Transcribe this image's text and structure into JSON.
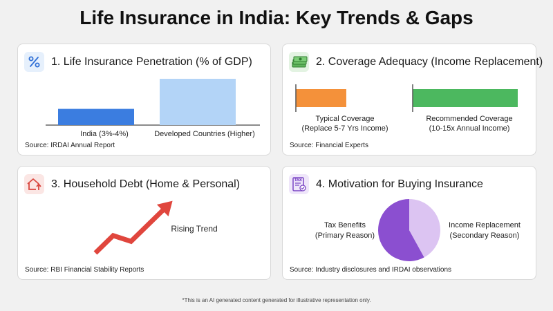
{
  "title": "Life Insurance in India: Key Trends & Gaps",
  "footer": "*This is an AI generated content generated for illustrative representation only.",
  "icons": {
    "card1": "percent-icon",
    "card2": "money-stack-icon",
    "card3": "house-up-arrow-icon",
    "card4": "tax-document-icon"
  },
  "colors": {
    "india_bar": "#3b7de0",
    "developed_bar": "#b3d4f7",
    "typical_bar": "#f4913a",
    "recommended_bar": "#4cb85f",
    "trend_arrow": "#e0463d",
    "pie_primary": "#8b4fd0",
    "pie_secondary": "#dcc4f2"
  },
  "card1": {
    "title": "1. Life Insurance Penetration (% of GDP)",
    "source": "Source: IRDAI Annual Report"
  },
  "card2": {
    "title": "2. Coverage Adequacy (Income Replacement)",
    "source": "Source: Financial Experts"
  },
  "card3": {
    "title": "3. Household Debt (Home & Personal)",
    "source": "Source: RBI Financial Stability Reports",
    "trend_label": "Rising Trend"
  },
  "card4": {
    "title": "4. Motivation for Buying Insurance",
    "source": "Source: Industry disclosures and IRDAI observations"
  },
  "chart_data": [
    {
      "type": "bar",
      "title": "1. Life Insurance Penetration (% of GDP)",
      "categories": [
        "India (3%-4%)",
        "Developed Countries (Higher)"
      ],
      "values": [
        3.5,
        10
      ],
      "ylim": [
        0,
        10
      ],
      "xlabel": "",
      "ylabel": ""
    },
    {
      "type": "bar",
      "title": "2. Coverage Adequacy (Income Replacement)",
      "categories": [
        "Typical Coverage",
        "Recommended Coverage"
      ],
      "category_notes": [
        "(Replace 5-7 Yrs Income)",
        "(10-15x Annual Income)"
      ],
      "values": [
        6,
        12.5
      ],
      "unit": "years of income",
      "xlabel": "",
      "ylabel": ""
    },
    {
      "type": "line",
      "title": "3. Household Debt (Home & Personal)",
      "x": [
        0,
        1,
        2,
        3,
        4
      ],
      "values": [
        0,
        3,
        2,
        5,
        8
      ],
      "annotation": "Rising Trend"
    },
    {
      "type": "pie",
      "title": "4. Motivation for Buying Insurance",
      "labels": [
        "Tax Benefits",
        "Income Replacement"
      ],
      "label_notes": [
        "(Primary Reason)",
        "(Secondary Reason)"
      ],
      "values": [
        58,
        42
      ]
    }
  ]
}
